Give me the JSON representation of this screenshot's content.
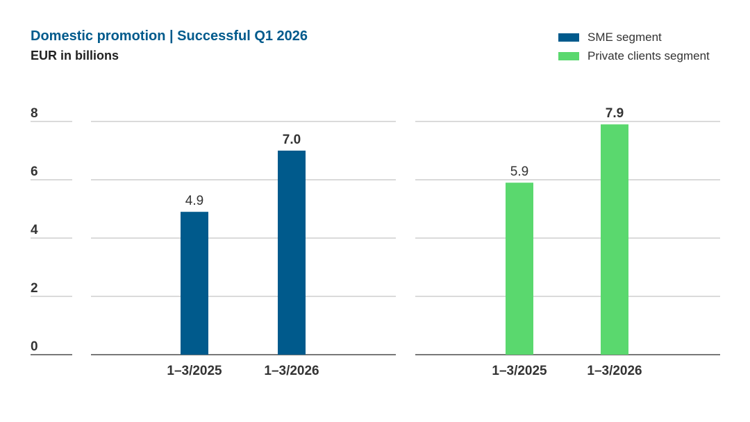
{
  "chart_data": {
    "type": "bar",
    "title": "Domestic promotion | Successful Q1 2026",
    "subtitle": "EUR in billions",
    "yticks": [
      "0",
      "2",
      "4",
      "6",
      "8"
    ],
    "ylim": [
      0,
      8
    ],
    "grid": true,
    "legend": "top-right",
    "categories": [
      "1–3/2025",
      "1–3/2026"
    ],
    "series": [
      {
        "name": "SME segment",
        "color": "#005a8c",
        "values": [
          4.9,
          7.0
        ],
        "labels": [
          "4.9",
          "7.0"
        ]
      },
      {
        "name": "Private clients segment",
        "color": "#5ad86e",
        "values": [
          5.9,
          7.9
        ],
        "labels": [
          "5.9",
          "7.9"
        ]
      }
    ]
  },
  "colors": {
    "title": "#005a8c",
    "axis": "#777777",
    "grid": "#b5b5b5",
    "text": "#333333"
  }
}
